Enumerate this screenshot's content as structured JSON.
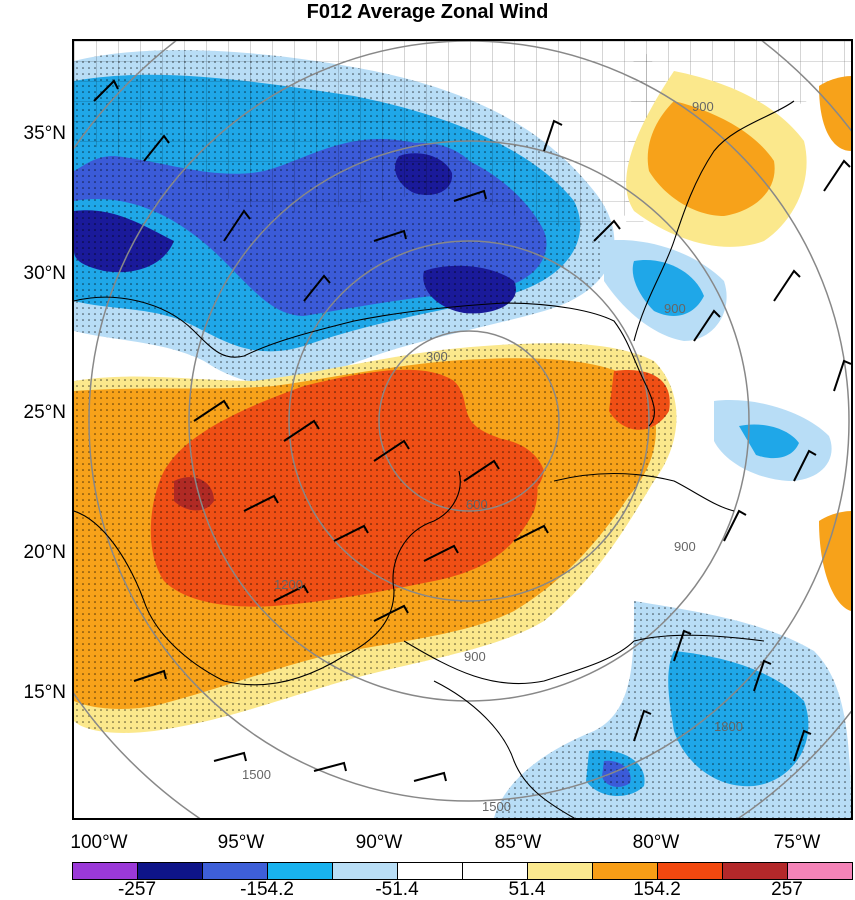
{
  "title": "F012 Average Zonal Wind",
  "map": {
    "lat_labels": [
      "35°N",
      "30°N",
      "25°N",
      "20°N",
      "15°N"
    ],
    "lon_labels": [
      "100°W",
      "95°W",
      "90°W",
      "85°W",
      "80°W",
      "75°W"
    ],
    "contour_labels": [
      "300",
      "600",
      "900",
      "900",
      "900",
      "1200",
      "1500",
      "1500",
      "1800",
      "900"
    ],
    "field_colors": {
      "strong_negative": "#1a1a9a",
      "moderate_negative": "#3b5bd8",
      "weak_negative": "#1fa7e8",
      "slight_negative": "#b8ddf6",
      "slight_positive": "#fbe88c",
      "weak_positive": "#f7a21a",
      "moderate_positive": "#ef4f15",
      "strong_positive": "#b02a24"
    }
  },
  "colorbar": {
    "colors": [
      "#9b39d8",
      "#0e1488",
      "#3e5fd8",
      "#19b2ee",
      "#b9def6",
      "#ffffff",
      "#ffffff",
      "#fbe98f",
      "#f89e16",
      "#f2480f",
      "#b3282a",
      "#f584b8"
    ],
    "tick_labels": [
      "-257",
      "-154.2",
      "-51.4",
      "51.4",
      "154.2",
      "257"
    ]
  }
}
